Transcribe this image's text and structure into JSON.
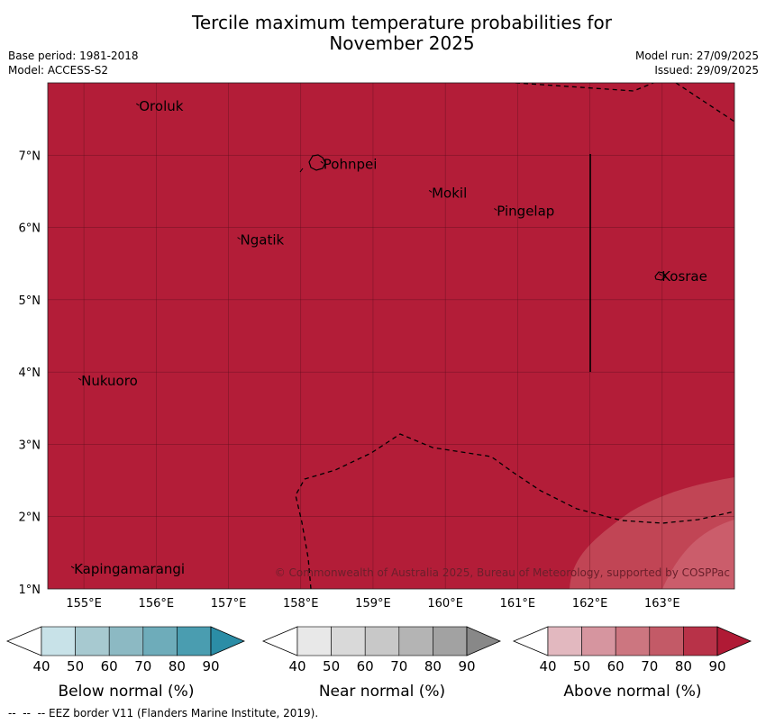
{
  "title": {
    "line1": "Tercile maximum temperature probabilities for",
    "line2": "November 2025"
  },
  "meta_left": {
    "base_period": "Base period: 1981-2018",
    "model": "Model: ACCESS-S2"
  },
  "meta_right": {
    "model_run": "Model run: 27/09/2025",
    "issued": "Issued: 29/09/2025"
  },
  "map": {
    "copyright": "© Commonwealth of Australia 2025, Bureau of Meteorology, supported by COSPPac",
    "lon_min": 154.5,
    "lon_max": 164.0,
    "lat_min": 1.0,
    "lat_max": 8.0,
    "fill_color": "#b31d38",
    "light_fill_color": "#c4505c",
    "lon_ticks": [
      {
        "value": 155,
        "label": "155°E"
      },
      {
        "value": 156,
        "label": "156°E"
      },
      {
        "value": 157,
        "label": "157°E"
      },
      {
        "value": 158,
        "label": "158°E"
      },
      {
        "value": 159,
        "label": "159°E"
      },
      {
        "value": 160,
        "label": "160°E"
      },
      {
        "value": 161,
        "label": "161°E"
      },
      {
        "value": 162,
        "label": "162°E"
      },
      {
        "value": 163,
        "label": "163°E"
      }
    ],
    "lat_ticks": [
      {
        "value": 1,
        "label": "1°N"
      },
      {
        "value": 2,
        "label": "2°N"
      },
      {
        "value": 3,
        "label": "3°N"
      },
      {
        "value": 4,
        "label": "4°N"
      },
      {
        "value": 5,
        "label": "5°N"
      },
      {
        "value": 6,
        "label": "6°N"
      },
      {
        "value": 7,
        "label": "7°N"
      }
    ],
    "places": [
      {
        "name": "Oroluk",
        "lon": 155.75,
        "lat": 7.65
      },
      {
        "name": "Pohnpei",
        "lon": 158.3,
        "lat": 6.85
      },
      {
        "name": "Mokil",
        "lon": 159.8,
        "lat": 6.45
      },
      {
        "name": "Pingelap",
        "lon": 160.7,
        "lat": 6.2
      },
      {
        "name": "Ngatik",
        "lon": 157.15,
        "lat": 5.8
      },
      {
        "name": "Kosrae",
        "lon": 162.98,
        "lat": 5.3
      },
      {
        "name": "Nukuoro",
        "lon": 154.95,
        "lat": 3.85
      },
      {
        "name": "Kapingamarangi",
        "lon": 154.85,
        "lat": 1.25
      }
    ]
  },
  "legends": [
    {
      "label": "Below normal (%)",
      "ticks": [
        "40",
        "50",
        "60",
        "70",
        "80",
        "90"
      ],
      "colors": [
        "#c8e2e8",
        "#a7c9d0",
        "#8cb9c3",
        "#6eacba",
        "#4a9db0",
        "#2b8da6"
      ]
    },
    {
      "label": "Near normal (%)",
      "ticks": [
        "40",
        "50",
        "60",
        "70",
        "80",
        "90"
      ],
      "colors": [
        "#e8e8e8",
        "#d9d9d9",
        "#c8c8c8",
        "#b4b4b4",
        "#a2a2a2",
        "#888888"
      ]
    },
    {
      "label": "Above normal (%)",
      "ticks": [
        "40",
        "50",
        "60",
        "70",
        "80",
        "90"
      ],
      "colors": [
        "#e2b8bf",
        "#d6959f",
        "#cc7680",
        "#c35a67",
        "#b83248",
        "#b01a35"
      ]
    }
  ],
  "footer": "--  --  -- EEZ border V11 (Flanders Marine Institute, 2019)."
}
